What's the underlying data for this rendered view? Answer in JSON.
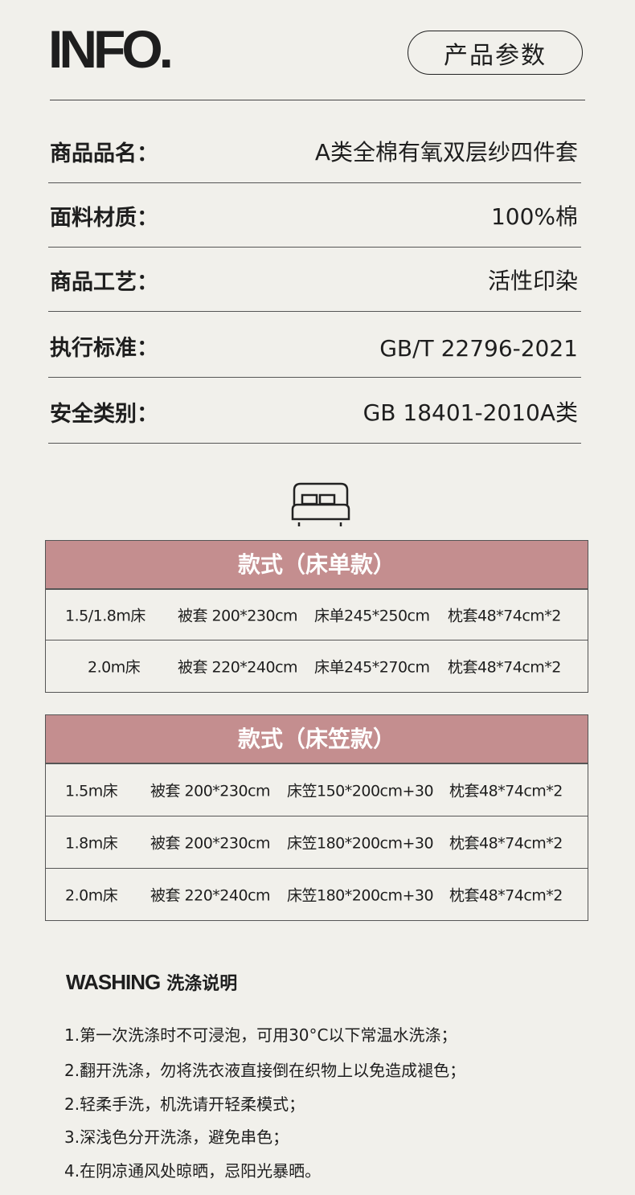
{
  "header": {
    "title": "INFO.",
    "badge": "产品参数"
  },
  "params": [
    {
      "label": "商品品名：",
      "value": "A类全棉有氧双层纱四件套"
    },
    {
      "label": "面料材质：",
      "value": "100%棉"
    },
    {
      "label": "商品工艺：",
      "value": "活性印染"
    },
    {
      "label": "执行标准：",
      "value": "GB/T 22796-2021"
    },
    {
      "label": "安全类别：",
      "value": "GB 18401-2010A类"
    }
  ],
  "icon": "bed-icon",
  "accent": "#c48e8f",
  "table1": {
    "title": "款式（床单款）",
    "rows": [
      [
        "1.5/1.8m床",
        "被套 200*230cm",
        "床单245*250cm",
        "枕套48*74cm*2"
      ],
      [
        "2.0m床",
        "被套 220*240cm",
        "床单245*270cm",
        "枕套48*74cm*2"
      ]
    ]
  },
  "table2": {
    "title": "款式（床笠款）",
    "rows": [
      [
        "1.5m床",
        "被套 200*230cm",
        "床笠150*200cm+30",
        "枕套48*74cm*2"
      ],
      [
        "1.8m床",
        "被套 200*230cm",
        "床笠180*200cm+30",
        "枕套48*74cm*2"
      ],
      [
        "2.0m床",
        "被套 220*240cm",
        "床笠180*200cm+30",
        "枕套48*74cm*2"
      ]
    ]
  },
  "washing": {
    "title_en": "WASHING",
    "title_cn": "洗涤说明",
    "items": [
      "1.第一次洗涤时不可浸泡，可用30°C以下常温水洗涤；",
      "2.翻开洗涤，勿将洗衣液直接倒在织物上以免造成褪色；",
      "2.轻柔手洗，机洗请开轻柔模式；",
      "3.深浅色分开洗涤，避免串色；",
      "4.在阴凉通风处晾晒，忌阳光暴晒。"
    ]
  }
}
